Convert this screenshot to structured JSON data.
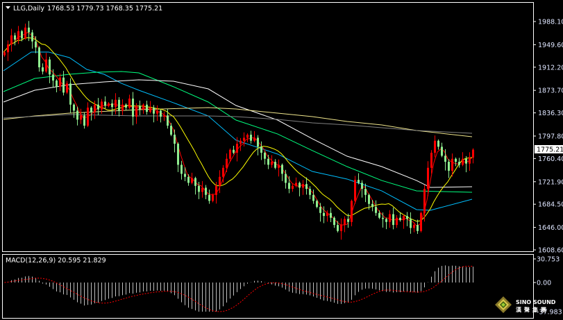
{
  "header": {
    "symbol_label": "LLG,Daily",
    "ohlc": "1768.53 1779.73 1768.35 1775.21",
    "menu_icon": "triangle-down-icon"
  },
  "macd_header": "MACD(12,26,9) 20.595 21.829",
  "watermark": {
    "name": "SINO SOUND",
    "chinese": "漢聲集團",
    "icon": "diamond-logo-icon"
  },
  "chart_data": [
    {
      "type": "candlestick",
      "title": "LLG,Daily",
      "ylim": [
        1608.6,
        1988.1
      ],
      "y_ticks": [
        "1988.10",
        "1949.60",
        "1912.20",
        "1873.70",
        "1836.30",
        "1797.80",
        "1760.40",
        "1721.90",
        "1684.50",
        "1646.00",
        "1608.60"
      ],
      "current_price": "1775.21",
      "colors": {
        "bull": "#ff0000",
        "bear": "#90ee90",
        "background": "#000000",
        "grid_frame": "#ffffff"
      },
      "close": [
        1937,
        1950,
        1965,
        1958,
        1972,
        1960,
        1978,
        1970,
        1955,
        1945,
        1912,
        1905,
        1925,
        1900,
        1890,
        1880,
        1895,
        1870,
        1885,
        1850,
        1840,
        1825,
        1832,
        1815,
        1845,
        1838,
        1850,
        1842,
        1855,
        1848,
        1852,
        1846,
        1858,
        1840,
        1850,
        1845,
        1860,
        1830,
        1848,
        1842,
        1850,
        1838,
        1845,
        1835,
        1840,
        1830,
        1832,
        1815,
        1800,
        1785,
        1750,
        1735,
        1730,
        1720,
        1728,
        1715,
        1705,
        1712,
        1700,
        1690,
        1700,
        1715,
        1730,
        1745,
        1760,
        1775,
        1770,
        1785,
        1790,
        1795,
        1800,
        1790,
        1795,
        1780,
        1770,
        1760,
        1750,
        1755,
        1745,
        1750,
        1735,
        1720,
        1710,
        1715,
        1720,
        1712,
        1718,
        1710,
        1700,
        1690,
        1680,
        1670,
        1665,
        1670,
        1662,
        1650,
        1640,
        1650,
        1660,
        1655,
        1690,
        1725,
        1720,
        1710,
        1700,
        1685,
        1680,
        1670,
        1662,
        1660,
        1655,
        1668,
        1650,
        1662,
        1658,
        1665,
        1660,
        1645,
        1650,
        1640,
        1670,
        1710,
        1745,
        1770,
        1790,
        1780,
        1765,
        1755,
        1740,
        1760,
        1755,
        1750,
        1760,
        1752,
        1762,
        1775.21
      ],
      "moving_averages": [
        {
          "color": "#00bfff",
          "points": [
            [
              0,
              1906.2
            ],
            [
              8,
              1937.4
            ],
            [
              13,
              1937.4
            ],
            [
              19,
              1928.1
            ],
            [
              24,
              1908.5
            ],
            [
              29,
              1900.4
            ],
            [
              34,
              1885.4
            ],
            [
              39,
              1873.9
            ],
            [
              49,
              1853.1
            ],
            [
              59,
              1831.2
            ],
            [
              67,
              1790.9
            ],
            [
              79,
              1767.8
            ],
            [
              89,
              1738.9
            ],
            [
              99,
              1726.3
            ],
            [
              109,
              1706.6
            ],
            [
              119,
              1675.5
            ],
            [
              123,
              1674.4
            ],
            [
              135,
              1692.8
            ]
          ]
        },
        {
          "color": "#00ff7f",
          "points": [
            [
              0,
              1871.6
            ],
            [
              9,
              1893.5
            ],
            [
              19,
              1900.4
            ],
            [
              27,
              1903.9
            ],
            [
              34,
              1905.0
            ],
            [
              39,
              1902.7
            ],
            [
              49,
              1879.7
            ],
            [
              59,
              1854.3
            ],
            [
              67,
              1824.3
            ],
            [
              79,
              1801.2
            ],
            [
              89,
              1773.6
            ],
            [
              99,
              1747.0
            ],
            [
              109,
              1723.9
            ],
            [
              119,
              1706.6
            ],
            [
              135,
              1704.3
            ]
          ]
        },
        {
          "color": "#ffffff",
          "points": [
            [
              0,
              1854.3
            ],
            [
              9,
              1873.9
            ],
            [
              19,
              1883.1
            ],
            [
              29,
              1887.7
            ],
            [
              39,
              1891.2
            ],
            [
              49,
              1888.9
            ],
            [
              59,
              1876.2
            ],
            [
              67,
              1848.5
            ],
            [
              79,
              1824.3
            ],
            [
              89,
              1793.2
            ],
            [
              99,
              1764.3
            ],
            [
              109,
              1747.0
            ],
            [
              119,
              1723.9
            ],
            [
              123,
              1712.4
            ],
            [
              135,
              1713.6
            ]
          ]
        },
        {
          "color": "#f0e68c",
          "points": [
            [
              0,
              1825.5
            ],
            [
              9,
              1831.2
            ],
            [
              19,
              1835.8
            ],
            [
              39,
              1841.6
            ],
            [
              59,
              1845.1
            ],
            [
              67,
              1842.8
            ],
            [
              79,
              1835.8
            ],
            [
              89,
              1830.1
            ],
            [
              99,
              1822.0
            ],
            [
              109,
              1816.2
            ],
            [
              119,
              1807.0
            ],
            [
              135,
              1796.6
            ]
          ]
        },
        {
          "color": "#808080",
          "points": [
            [
              0,
              1827.8
            ],
            [
              19,
              1833.5
            ],
            [
              29,
              1832.4
            ],
            [
              39,
              1831.2
            ],
            [
              59,
              1831.2
            ],
            [
              67,
              1830.1
            ],
            [
              79,
              1825.5
            ],
            [
              89,
              1819.7
            ],
            [
              99,
              1816.2
            ],
            [
              119,
              1807.0
            ],
            [
              135,
              1802.4
            ]
          ]
        }
      ],
      "fast_ma_color": "#ff0000",
      "slow_ma_color": "#ffff00"
    },
    {
      "type": "bar",
      "title": "MACD(12,26,9)",
      "values_shown": {
        "macd": 20.595,
        "signal": 21.829
      },
      "ylim": [
        -37.983,
        30.753
      ],
      "y_ticks": [
        "30.753",
        "0.00",
        "-37.983"
      ],
      "colors": {
        "histogram": "#c0c0c0",
        "signal": "#ff0000"
      }
    }
  ]
}
